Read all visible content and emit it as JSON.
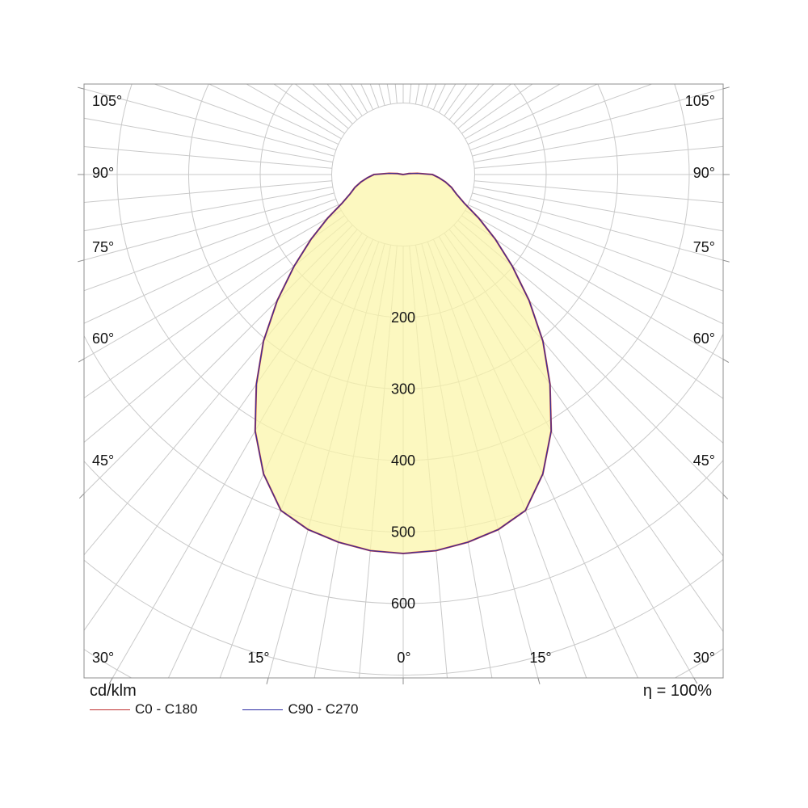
{
  "chart_data": {
    "type": "polar_intensity_distribution",
    "units_label": "cd/klm",
    "efficiency_label": "η = 100%",
    "gamma_deg": [
      0,
      5,
      10,
      15,
      20,
      25,
      30,
      35,
      40,
      45,
      50,
      55,
      60,
      65,
      70,
      75,
      80,
      85,
      90,
      95,
      100,
      105
    ],
    "series": [
      {
        "name": "C0 - C180",
        "color": "#bf3030",
        "values": [
          530,
          528,
          522,
          514,
          500,
          462,
          414,
          358,
          304,
          249,
          199,
          157,
          122,
          94,
          79,
          70,
          60,
          50,
          41,
          20,
          8,
          0
        ]
      },
      {
        "name": "C90 - C270",
        "color": "#2929a3",
        "values": [
          530,
          528,
          522,
          514,
          500,
          462,
          414,
          358,
          304,
          249,
          199,
          157,
          122,
          94,
          79,
          70,
          60,
          50,
          41,
          20,
          8,
          0
        ]
      }
    ],
    "radial_ticks": {
      "labels": [
        "200",
        "300",
        "400",
        "500",
        "600"
      ],
      "values": [
        200,
        300,
        400,
        500,
        600
      ],
      "ring_step": 100,
      "max_ring": 800
    },
    "angle_ticks": {
      "grid_step_deg": 5,
      "label_step_deg": 15,
      "left_labels": [
        "105°",
        "90°",
        "75°",
        "60°",
        "45°",
        "30°"
      ],
      "right_labels": [
        "105°",
        "90°",
        "75°",
        "60°",
        "45°",
        "30°"
      ],
      "bottom_labels": [
        "15°",
        "0°",
        "15°"
      ]
    },
    "fill_color": "#fbf5a8",
    "fill_opacity": 0.72,
    "grid_color": "#c9c9c9",
    "frame_color": "#8f8f8f",
    "label_color": "#141414"
  }
}
